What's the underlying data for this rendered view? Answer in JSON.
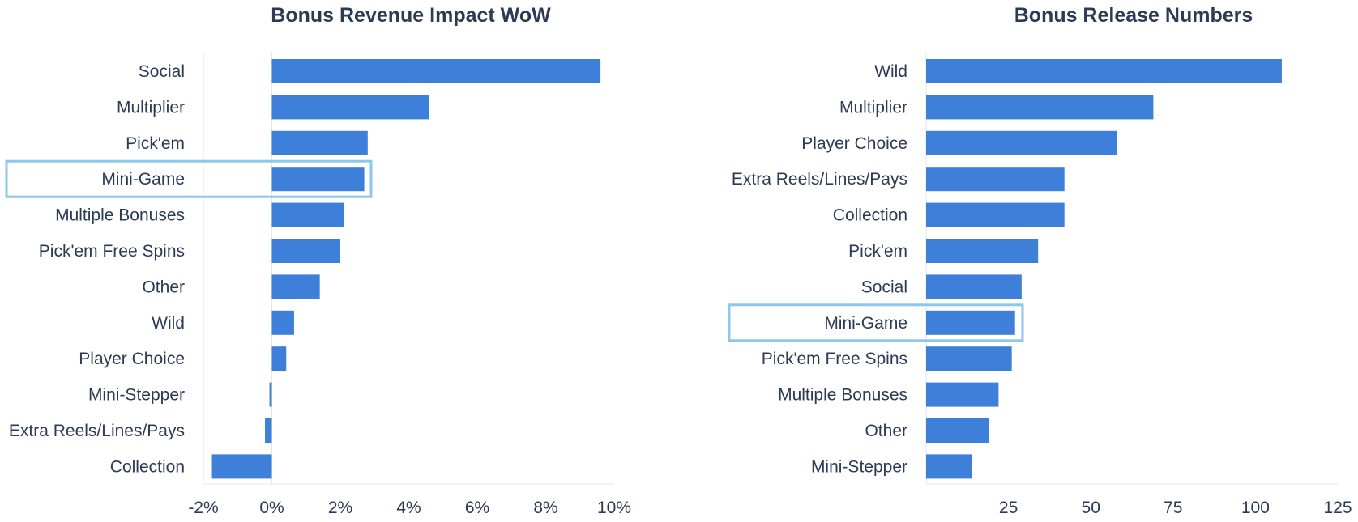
{
  "colors": {
    "bar": "#3d7fd9",
    "highlight": "#8cc8ec",
    "text": "#2b3b55",
    "axis": "#e6e6e6"
  },
  "chart_data": [
    {
      "type": "bar",
      "orientation": "horizontal",
      "title": "Bonus Revenue Impact WoW",
      "categories": [
        "Social",
        "Multiplier",
        "Pick'em",
        "Mini-Game",
        "Multiple Bonuses",
        "Pick'em Free Spins",
        "Other",
        "Wild",
        "Player Choice",
        "Mini-Stepper",
        "Extra Reels/Lines/Pays",
        "Collection"
      ],
      "values": [
        9.6,
        4.6,
        2.8,
        2.7,
        2.1,
        2.0,
        1.4,
        0.65,
        0.42,
        -0.07,
        -0.2,
        -1.75
      ],
      "xlim": [
        -2,
        10
      ],
      "xticks": [
        -2,
        0,
        2,
        4,
        6,
        8,
        10
      ],
      "xtick_labels": [
        "-2%",
        "0%",
        "2%",
        "4%",
        "6%",
        "8%",
        "10%"
      ],
      "highlighted": "Mini-Game"
    },
    {
      "type": "bar",
      "orientation": "horizontal",
      "title": "Bonus Release Numbers",
      "categories": [
        "Wild",
        "Multiplier",
        "Player Choice",
        "Extra Reels/Lines/Pays",
        "Collection",
        "Pick'em",
        "Social",
        "Mini-Game",
        "Pick'em Free Spins",
        "Multiple Bonuses",
        "Other",
        "Mini-Stepper"
      ],
      "values": [
        108,
        69,
        58,
        42,
        42,
        34,
        29,
        27,
        26,
        22,
        19,
        14
      ],
      "xlim": [
        0,
        125
      ],
      "xticks": [
        25,
        50,
        75,
        100,
        125
      ],
      "xtick_labels": [
        "25",
        "50",
        "75",
        "100",
        "125"
      ],
      "highlighted": "Mini-Game"
    }
  ]
}
